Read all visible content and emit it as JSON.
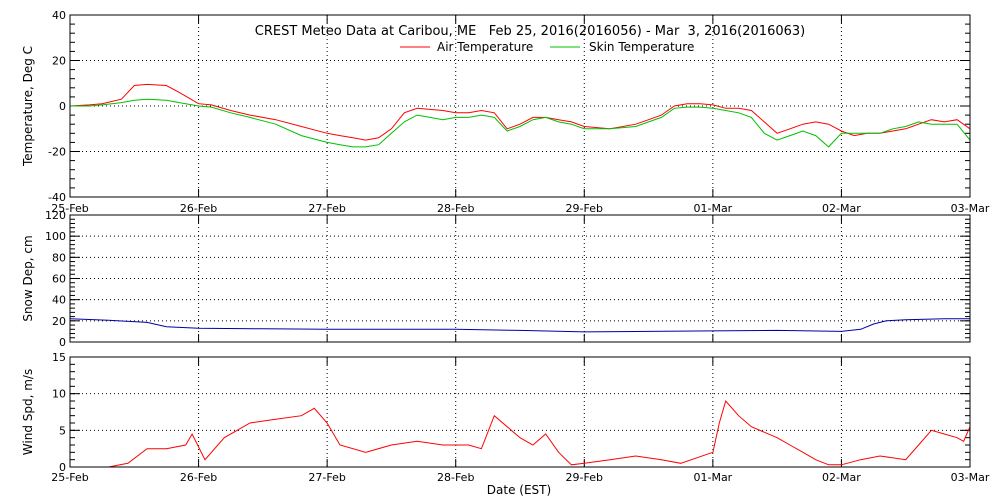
{
  "title": "CREST Meteo Data at Caribou, ME   Feb 25, 2016(2016056) - Mar  3, 2016(2016063)",
  "xlabel": "Date (EST)",
  "colors": {
    "air_temperature": "#ff0000",
    "skin_temperature": "#00c000",
    "snow_depth": "#0000aa",
    "wind_speed": "#ff0000",
    "axes": "#000000",
    "grid": "#000000"
  },
  "chart_data": [
    {
      "type": "line",
      "ylabel": "Temperature, Deg C",
      "ylim": [
        -40,
        40
      ],
      "yticks": [
        -40,
        -20,
        0,
        20,
        40
      ],
      "xlim": [
        0,
        7
      ],
      "xticks": [
        0,
        1,
        2,
        3,
        4,
        5,
        6,
        7
      ],
      "xtick_labels": [
        "25-Feb",
        "26-Feb",
        "27-Feb",
        "28-Feb",
        "29-Feb",
        "01-Mar",
        "02-Mar",
        "03-Mar"
      ],
      "grid": true,
      "legend_placement": "top-center",
      "series": [
        {
          "name": "Air Temperature",
          "x": [
            0,
            0.15,
            0.25,
            0.4,
            0.5,
            0.6,
            0.75,
            0.85,
            1.0,
            1.1,
            1.25,
            1.4,
            1.6,
            1.8,
            2.0,
            2.1,
            2.2,
            2.3,
            2.4,
            2.5,
            2.6,
            2.7,
            2.8,
            2.9,
            3.0,
            3.1,
            3.2,
            3.3,
            3.4,
            3.5,
            3.6,
            3.7,
            3.8,
            3.9,
            4.0,
            4.2,
            4.4,
            4.5,
            4.6,
            4.7,
            4.8,
            4.9,
            5.0,
            5.1,
            5.2,
            5.3,
            5.4,
            5.5,
            5.6,
            5.7,
            5.8,
            5.9,
            6.0,
            6.1,
            6.2,
            6.3,
            6.4,
            6.5,
            6.6,
            6.7,
            6.8,
            6.9,
            7.0
          ],
          "y": [
            0,
            0.5,
            1,
            3,
            9,
            9.5,
            9,
            6,
            1,
            0.5,
            -2,
            -4,
            -6,
            -9,
            -12,
            -13,
            -14,
            -15,
            -14,
            -10,
            -3,
            -1,
            -1.5,
            -2,
            -3,
            -3,
            -2,
            -3,
            -10,
            -8,
            -5,
            -5,
            -6,
            -7,
            -9,
            -10,
            -8,
            -6,
            -4,
            0,
            1,
            1,
            0.5,
            -1,
            -1,
            -2,
            -7,
            -12,
            -10,
            -8,
            -7,
            -8,
            -11,
            -13,
            -12,
            -12,
            -11,
            -10,
            -8,
            -6,
            -7,
            -6,
            -10
          ]
        },
        {
          "name": "Skin Temperature",
          "x": [
            0,
            0.15,
            0.25,
            0.4,
            0.5,
            0.6,
            0.75,
            0.85,
            1.0,
            1.1,
            1.25,
            1.4,
            1.6,
            1.8,
            2.0,
            2.1,
            2.2,
            2.3,
            2.4,
            2.5,
            2.6,
            2.7,
            2.8,
            2.9,
            3.0,
            3.1,
            3.2,
            3.3,
            3.4,
            3.5,
            3.6,
            3.7,
            3.8,
            3.9,
            4.0,
            4.2,
            4.4,
            4.5,
            4.6,
            4.7,
            4.8,
            4.9,
            5.0,
            5.1,
            5.2,
            5.3,
            5.4,
            5.5,
            5.6,
            5.7,
            5.8,
            5.9,
            6.0,
            6.1,
            6.2,
            6.3,
            6.4,
            6.5,
            6.6,
            6.7,
            6.8,
            6.9,
            7.0
          ],
          "y": [
            0,
            0,
            0.5,
            1.5,
            2.5,
            3,
            2.5,
            1.5,
            0,
            -0.5,
            -3,
            -5,
            -8,
            -13,
            -16,
            -17,
            -18,
            -18,
            -17,
            -12,
            -7,
            -4,
            -5,
            -6,
            -5,
            -5,
            -4,
            -5,
            -11,
            -9,
            -6,
            -5,
            -7,
            -8,
            -10,
            -10,
            -9,
            -7,
            -5,
            -1,
            -0.5,
            -0.5,
            -1,
            -2,
            -3,
            -5,
            -12,
            -15,
            -13,
            -11,
            -13,
            -18,
            -12,
            -12,
            -12,
            -12,
            -10,
            -9,
            -7,
            -8,
            -8,
            -8,
            -15
          ]
        }
      ]
    },
    {
      "type": "line",
      "ylabel": "Snow Dep, cm",
      "ylim": [
        0,
        120
      ],
      "yticks": [
        0,
        20,
        40,
        60,
        80,
        100,
        120
      ],
      "xlim": [
        0,
        7
      ],
      "xticks": [
        0,
        1,
        2,
        3,
        4,
        5,
        6,
        7
      ],
      "grid": true,
      "series": [
        {
          "x": [
            0,
            0.3,
            0.6,
            0.75,
            1.0,
            1.5,
            2.0,
            2.5,
            3.0,
            3.5,
            4.0,
            4.5,
            5.0,
            5.5,
            6.0,
            6.15,
            6.25,
            6.35,
            6.5,
            6.8,
            7.0
          ],
          "y": [
            22,
            20.5,
            18.5,
            14.5,
            13,
            12.5,
            12,
            12,
            12,
            11,
            9.5,
            10,
            10.5,
            11,
            10,
            12,
            17,
            20,
            21,
            22,
            22
          ]
        }
      ]
    },
    {
      "type": "line",
      "ylabel": "Wind Spd, m/s",
      "ylim": [
        0,
        15
      ],
      "yticks": [
        0,
        5,
        10,
        15
      ],
      "xlim": [
        0,
        7
      ],
      "xticks": [
        0,
        1,
        2,
        3,
        4,
        5,
        6,
        7
      ],
      "grid": true,
      "series": [
        {
          "x": [
            0,
            0.3,
            0.45,
            0.6,
            0.75,
            0.9,
            0.95,
            1.05,
            1.2,
            1.4,
            1.6,
            1.8,
            1.9,
            2.0,
            2.1,
            2.3,
            2.5,
            2.7,
            2.9,
            3.1,
            3.2,
            3.3,
            3.5,
            3.6,
            3.7,
            3.8,
            3.9,
            4.0,
            4.2,
            4.4,
            4.6,
            4.75,
            5.0,
            5.05,
            5.1,
            5.2,
            5.3,
            5.5,
            5.6,
            5.7,
            5.8,
            5.9,
            6.0,
            6.15,
            6.3,
            6.5,
            6.6,
            6.7,
            6.8,
            6.9,
            6.95,
            7.0
          ],
          "y": [
            0,
            0,
            0.5,
            2.5,
            2.5,
            3,
            4.5,
            1,
            4,
            6,
            6.5,
            7,
            8,
            6,
            3,
            2,
            3,
            3.5,
            3,
            3,
            2.5,
            7,
            4,
            3,
            4.5,
            2,
            0.3,
            0.5,
            1,
            1.5,
            1,
            0.5,
            2,
            6,
            9,
            7,
            5.5,
            4,
            3,
            2,
            1,
            0.3,
            0.3,
            1,
            1.5,
            1,
            3,
            5,
            4.5,
            4,
            3.5,
            5.5
          ]
        }
      ]
    }
  ]
}
